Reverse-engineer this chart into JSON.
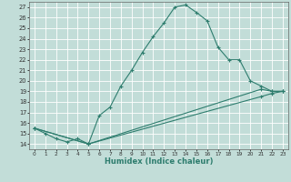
{
  "xlabel": "Humidex (Indice chaleur)",
  "bg_color": "#c2ddd8",
  "line_color": "#2e7d6e",
  "grid_color": "#ffffff",
  "xlim": [
    -0.5,
    23.5
  ],
  "ylim": [
    13.5,
    27.5
  ],
  "xticks": [
    0,
    1,
    2,
    3,
    4,
    5,
    6,
    7,
    8,
    9,
    10,
    11,
    12,
    13,
    14,
    15,
    16,
    17,
    18,
    19,
    20,
    21,
    22,
    23
  ],
  "yticks": [
    14,
    15,
    16,
    17,
    18,
    19,
    20,
    21,
    22,
    23,
    24,
    25,
    26,
    27
  ],
  "line1_x": [
    0,
    1,
    2,
    3,
    4,
    5,
    6,
    7,
    8,
    9,
    10,
    11,
    12,
    13,
    14,
    15,
    16,
    17,
    18,
    19,
    20,
    21,
    22,
    23
  ],
  "line1_y": [
    15.5,
    15.0,
    14.5,
    14.2,
    14.5,
    14.0,
    16.7,
    17.5,
    19.5,
    21.0,
    22.7,
    24.2,
    25.5,
    27.0,
    27.2,
    26.5,
    25.7,
    23.2,
    22.0,
    22.0,
    20.0,
    19.5,
    19.0,
    19.0
  ],
  "line2_x": [
    0,
    5,
    21,
    22,
    23
  ],
  "line2_y": [
    15.5,
    14.0,
    19.2,
    19.0,
    19.0
  ],
  "line3_x": [
    0,
    5,
    21,
    22,
    23
  ],
  "line3_y": [
    15.5,
    14.0,
    18.5,
    18.8,
    19.0
  ]
}
